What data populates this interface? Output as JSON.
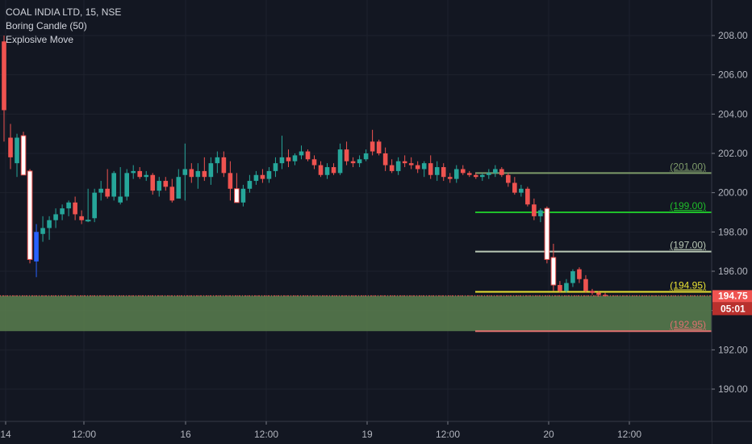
{
  "legend": {
    "symbol_line": "COAL INDIA LTD, 15, NSE",
    "indicator_1": "Boring Candle (50)",
    "indicator_2": "Explosive Move"
  },
  "colors": {
    "background": "#131722",
    "bull": "#26a69a",
    "bear": "#ef5350",
    "explosive_bull": "#2962ff",
    "boring": "#ffffff",
    "grid": "#363a45",
    "zone_fill": "#5b7f4f",
    "zone_border": "#ef5350"
  },
  "chart_data": {
    "type": "candlestick",
    "symbol": "COAL INDIA LTD",
    "interval": "15",
    "exchange": "NSE",
    "ylim": [
      188.3,
      210.0
    ],
    "y_ticks": [
      190,
      192,
      194,
      196,
      198,
      200,
      202,
      204,
      206,
      208
    ],
    "y_tick_labels": [
      "190.00",
      "192.00",
      "194.00",
      "196.00",
      "198.00",
      "200.00",
      "202.00",
      "204.00",
      "206.00",
      "208.00"
    ],
    "x_tick_labels": [
      "14",
      "12:00",
      "16",
      "12:00",
      "19",
      "12:00",
      "20",
      "12:00"
    ],
    "candles": [
      {
        "o": 204.2,
        "h": 208.0,
        "l": 202.6,
        "c": 207.7,
        "t": "bear"
      },
      {
        "o": 202.8,
        "h": 203.5,
        "l": 201.2,
        "c": 201.8,
        "t": "bear"
      },
      {
        "o": 201.5,
        "h": 203.0,
        "l": 200.8,
        "c": 202.8,
        "t": "bull"
      },
      {
        "o": 202.9,
        "h": 203.1,
        "l": 200.9,
        "c": 200.9,
        "t": "boring"
      },
      {
        "o": 201.1,
        "h": 201.2,
        "l": 196.4,
        "c": 196.6,
        "t": "boring"
      },
      {
        "o": 196.5,
        "h": 198.4,
        "l": 195.7,
        "c": 198.0,
        "t": "explosive"
      },
      {
        "o": 197.9,
        "h": 198.8,
        "l": 197.5,
        "c": 198.2,
        "t": "bull"
      },
      {
        "o": 198.2,
        "h": 198.8,
        "l": 197.6,
        "c": 198.6,
        "t": "bull"
      },
      {
        "o": 198.6,
        "h": 199.2,
        "l": 198.2,
        "c": 198.9,
        "t": "bull"
      },
      {
        "o": 198.9,
        "h": 199.4,
        "l": 198.6,
        "c": 199.2,
        "t": "bull"
      },
      {
        "o": 199.2,
        "h": 199.6,
        "l": 198.8,
        "c": 199.5,
        "t": "bull"
      },
      {
        "o": 199.5,
        "h": 199.8,
        "l": 198.6,
        "c": 198.9,
        "t": "bear"
      },
      {
        "o": 198.8,
        "h": 199.1,
        "l": 198.4,
        "c": 198.6,
        "t": "bear"
      },
      {
        "o": 198.6,
        "h": 200.2,
        "l": 198.5,
        "c": 198.6,
        "t": "boring"
      },
      {
        "o": 198.7,
        "h": 200.2,
        "l": 198.5,
        "c": 200.0,
        "t": "bull"
      },
      {
        "o": 200.0,
        "h": 200.6,
        "l": 199.6,
        "c": 200.2,
        "t": "bull"
      },
      {
        "o": 200.2,
        "h": 201.2,
        "l": 199.7,
        "c": 199.8,
        "t": "bear"
      },
      {
        "o": 199.8,
        "h": 201.1,
        "l": 199.6,
        "c": 201.0,
        "t": "bull"
      },
      {
        "o": 199.5,
        "h": 201.3,
        "l": 199.4,
        "c": 199.8,
        "t": "bull"
      },
      {
        "o": 199.8,
        "h": 201.2,
        "l": 199.6,
        "c": 201.0,
        "t": "bull"
      },
      {
        "o": 201.0,
        "h": 201.4,
        "l": 200.7,
        "c": 201.1,
        "t": "bull"
      },
      {
        "o": 201.1,
        "h": 201.3,
        "l": 200.7,
        "c": 200.8,
        "t": "bear"
      },
      {
        "o": 200.8,
        "h": 201.1,
        "l": 200.6,
        "c": 200.9,
        "t": "bull"
      },
      {
        "o": 200.9,
        "h": 201.0,
        "l": 199.9,
        "c": 200.1,
        "t": "bear"
      },
      {
        "o": 200.1,
        "h": 200.8,
        "l": 199.8,
        "c": 200.6,
        "t": "bull"
      },
      {
        "o": 200.6,
        "h": 200.8,
        "l": 200.1,
        "c": 200.3,
        "t": "bear"
      },
      {
        "o": 200.3,
        "h": 200.7,
        "l": 199.5,
        "c": 199.6,
        "t": "bear"
      },
      {
        "o": 199.7,
        "h": 201.2,
        "l": 199.7,
        "c": 200.8,
        "t": "bull"
      },
      {
        "o": 200.9,
        "h": 202.5,
        "l": 199.6,
        "c": 201.2,
        "t": "bull"
      },
      {
        "o": 201.2,
        "h": 201.5,
        "l": 200.5,
        "c": 200.8,
        "t": "bear"
      },
      {
        "o": 200.8,
        "h": 201.5,
        "l": 200.2,
        "c": 201.1,
        "t": "bull"
      },
      {
        "o": 201.1,
        "h": 201.8,
        "l": 200.6,
        "c": 200.8,
        "t": "bear"
      },
      {
        "o": 200.8,
        "h": 201.8,
        "l": 200.4,
        "c": 201.5,
        "t": "bull"
      },
      {
        "o": 201.5,
        "h": 202.1,
        "l": 201.0,
        "c": 201.8,
        "t": "bull"
      },
      {
        "o": 201.8,
        "h": 202.1,
        "l": 200.8,
        "c": 201.0,
        "t": "bear"
      },
      {
        "o": 201.0,
        "h": 201.6,
        "l": 199.6,
        "c": 200.2,
        "t": "bear"
      },
      {
        "o": 200.2,
        "h": 201.0,
        "l": 199.5,
        "c": 199.5,
        "t": "boring"
      },
      {
        "o": 199.5,
        "h": 200.4,
        "l": 199.3,
        "c": 200.2,
        "t": "bull"
      },
      {
        "o": 200.2,
        "h": 200.9,
        "l": 200.0,
        "c": 200.6,
        "t": "bull"
      },
      {
        "o": 200.6,
        "h": 201.1,
        "l": 200.4,
        "c": 200.9,
        "t": "bull"
      },
      {
        "o": 200.9,
        "h": 201.2,
        "l": 200.5,
        "c": 200.7,
        "t": "bear"
      },
      {
        "o": 200.7,
        "h": 201.3,
        "l": 200.5,
        "c": 201.1,
        "t": "bull"
      },
      {
        "o": 201.1,
        "h": 201.8,
        "l": 200.8,
        "c": 201.5,
        "t": "bull"
      },
      {
        "o": 201.5,
        "h": 202.9,
        "l": 201.2,
        "c": 201.8,
        "t": "bull"
      },
      {
        "o": 201.8,
        "h": 202.2,
        "l": 201.3,
        "c": 201.6,
        "t": "bear"
      },
      {
        "o": 201.6,
        "h": 202.0,
        "l": 201.4,
        "c": 201.9,
        "t": "bull"
      },
      {
        "o": 201.9,
        "h": 202.4,
        "l": 201.7,
        "c": 202.1,
        "t": "bull"
      },
      {
        "o": 202.1,
        "h": 202.2,
        "l": 201.6,
        "c": 201.7,
        "t": "bear"
      },
      {
        "o": 201.7,
        "h": 201.9,
        "l": 201.2,
        "c": 201.4,
        "t": "bear"
      },
      {
        "o": 201.4,
        "h": 201.6,
        "l": 200.8,
        "c": 200.9,
        "t": "bear"
      },
      {
        "o": 200.9,
        "h": 201.5,
        "l": 200.7,
        "c": 201.3,
        "t": "bull"
      },
      {
        "o": 201.3,
        "h": 201.5,
        "l": 200.9,
        "c": 201.0,
        "t": "bear"
      },
      {
        "o": 201.0,
        "h": 202.5,
        "l": 200.9,
        "c": 202.2,
        "t": "bull"
      },
      {
        "o": 202.2,
        "h": 202.6,
        "l": 201.4,
        "c": 201.6,
        "t": "bear"
      },
      {
        "o": 201.6,
        "h": 201.8,
        "l": 201.3,
        "c": 201.5,
        "t": "bear"
      },
      {
        "o": 201.5,
        "h": 201.9,
        "l": 201.3,
        "c": 201.7,
        "t": "bull"
      },
      {
        "o": 201.7,
        "h": 202.2,
        "l": 201.6,
        "c": 202.0,
        "t": "bull"
      },
      {
        "o": 202.1,
        "h": 203.2,
        "l": 201.9,
        "c": 202.6,
        "t": "bear"
      },
      {
        "o": 202.6,
        "h": 202.7,
        "l": 201.9,
        "c": 202.0,
        "t": "bear"
      },
      {
        "o": 202.0,
        "h": 202.3,
        "l": 201.1,
        "c": 201.4,
        "t": "bear"
      },
      {
        "o": 201.4,
        "h": 201.7,
        "l": 201.0,
        "c": 201.1,
        "t": "bear"
      },
      {
        "o": 201.1,
        "h": 201.8,
        "l": 200.9,
        "c": 201.6,
        "t": "bull"
      },
      {
        "o": 201.6,
        "h": 201.9,
        "l": 201.3,
        "c": 201.5,
        "t": "bear"
      },
      {
        "o": 201.5,
        "h": 201.8,
        "l": 201.2,
        "c": 201.4,
        "t": "bear"
      },
      {
        "o": 201.4,
        "h": 201.6,
        "l": 201.0,
        "c": 201.2,
        "t": "bear"
      },
      {
        "o": 201.2,
        "h": 201.6,
        "l": 200.8,
        "c": 201.5,
        "t": "bull"
      },
      {
        "o": 201.5,
        "h": 201.9,
        "l": 200.7,
        "c": 200.9,
        "t": "bear"
      },
      {
        "o": 200.9,
        "h": 201.6,
        "l": 200.6,
        "c": 201.3,
        "t": "bull"
      },
      {
        "o": 201.3,
        "h": 201.5,
        "l": 200.6,
        "c": 200.8,
        "t": "bear"
      },
      {
        "o": 200.8,
        "h": 201.0,
        "l": 200.5,
        "c": 200.7,
        "t": "bear"
      },
      {
        "o": 200.7,
        "h": 201.4,
        "l": 200.5,
        "c": 201.2,
        "t": "bull"
      },
      {
        "o": 201.2,
        "h": 201.4,
        "l": 200.9,
        "c": 201.0,
        "t": "bear"
      },
      {
        "o": 201.0,
        "h": 201.1,
        "l": 200.8,
        "c": 200.9,
        "t": "bear"
      },
      {
        "o": 200.9,
        "h": 201.0,
        "l": 200.7,
        "c": 200.8,
        "t": "bear"
      },
      {
        "o": 200.8,
        "h": 201.0,
        "l": 200.6,
        "c": 200.9,
        "t": "bull"
      },
      {
        "o": 200.9,
        "h": 201.2,
        "l": 200.7,
        "c": 201.0,
        "t": "bull"
      },
      {
        "o": 201.0,
        "h": 201.4,
        "l": 200.8,
        "c": 201.2,
        "t": "bull"
      },
      {
        "o": 201.2,
        "h": 201.3,
        "l": 200.8,
        "c": 200.9,
        "t": "bear"
      },
      {
        "o": 200.9,
        "h": 201.0,
        "l": 200.3,
        "c": 200.5,
        "t": "bear"
      },
      {
        "o": 200.5,
        "h": 200.8,
        "l": 199.9,
        "c": 200.0,
        "t": "bear"
      },
      {
        "o": 200.0,
        "h": 200.4,
        "l": 199.8,
        "c": 200.2,
        "t": "bull"
      },
      {
        "o": 200.2,
        "h": 200.3,
        "l": 199.3,
        "c": 199.4,
        "t": "bear"
      },
      {
        "o": 199.4,
        "h": 199.7,
        "l": 198.6,
        "c": 198.8,
        "t": "bear"
      },
      {
        "o": 198.8,
        "h": 199.2,
        "l": 198.5,
        "c": 199.1,
        "t": "bull"
      },
      {
        "o": 199.2,
        "h": 199.3,
        "l": 196.4,
        "c": 196.6,
        "t": "boring"
      },
      {
        "o": 196.7,
        "h": 197.4,
        "l": 195.0,
        "c": 195.3,
        "t": "boring"
      },
      {
        "o": 195.3,
        "h": 195.5,
        "l": 194.9,
        "c": 195.0,
        "t": "bear"
      },
      {
        "o": 195.0,
        "h": 195.6,
        "l": 194.9,
        "c": 195.4,
        "t": "bull"
      },
      {
        "o": 195.4,
        "h": 196.1,
        "l": 195.2,
        "c": 196.0,
        "t": "bull"
      },
      {
        "o": 196.1,
        "h": 196.2,
        "l": 195.4,
        "c": 195.6,
        "t": "bear"
      },
      {
        "o": 195.6,
        "h": 195.8,
        "l": 194.9,
        "c": 195.0,
        "t": "bear"
      },
      {
        "o": 195.0,
        "h": 195.1,
        "l": 194.8,
        "c": 194.9,
        "t": "bear"
      },
      {
        "o": 194.9,
        "h": 195.0,
        "l": 194.7,
        "c": 194.8,
        "t": "bear"
      },
      {
        "o": 194.8,
        "h": 194.9,
        "l": 194.7,
        "c": 194.75,
        "t": "bear"
      }
    ],
    "levels": [
      {
        "value": 201.0,
        "label": "(201.00)",
        "color": "#7e9b6a"
      },
      {
        "value": 199.0,
        "label": "(199.00)",
        "color": "#1fbf2a"
      },
      {
        "value": 197.0,
        "label": "(197.00)",
        "color": "#b9c8b5"
      },
      {
        "value": 194.95,
        "label": "(194.95)",
        "color": "#e8e233"
      },
      {
        "value": 192.95,
        "label": "(192.95)",
        "color": "#e07070"
      }
    ],
    "zone": {
      "top": 194.75,
      "bottom": 192.95
    },
    "last_price": {
      "value": 194.75,
      "label": "194.75",
      "countdown": "05:01",
      "color": "#ef5350"
    }
  }
}
